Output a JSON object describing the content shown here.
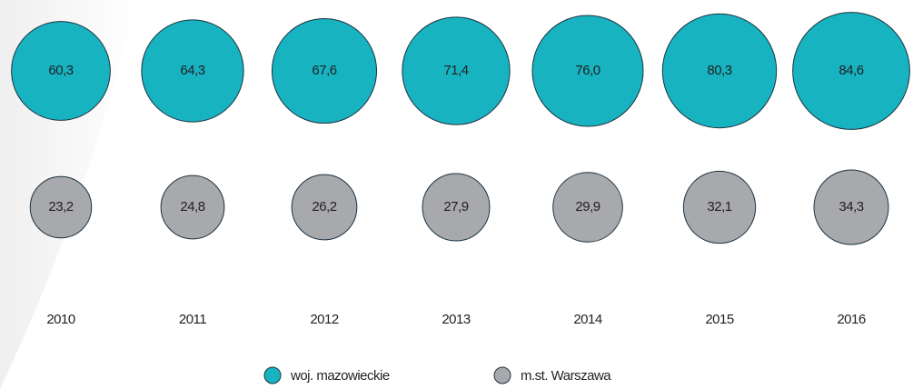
{
  "chart_data": {
    "type": "bubble",
    "categories": [
      "2010",
      "2011",
      "2012",
      "2013",
      "2014",
      "2015",
      "2016"
    ],
    "series": [
      {
        "name": "woj. mazowieckie",
        "color": "#17b3c1",
        "values": [
          60.3,
          64.3,
          67.6,
          71.4,
          76.0,
          80.3,
          84.6
        ],
        "value_labels": [
          "60,3",
          "64,3",
          "67,6",
          "71,4",
          "76,0",
          "80,3",
          "84,6"
        ]
      },
      {
        "name": "m.st. Warszawa",
        "color": "#a8a9ac",
        "values": [
          23.2,
          24.8,
          26.2,
          27.9,
          29.9,
          32.1,
          34.3
        ],
        "value_labels": [
          "23,2",
          "24,8",
          "26,2",
          "27,9",
          "29,9",
          "32,1",
          "34,3"
        ]
      }
    ]
  }
}
